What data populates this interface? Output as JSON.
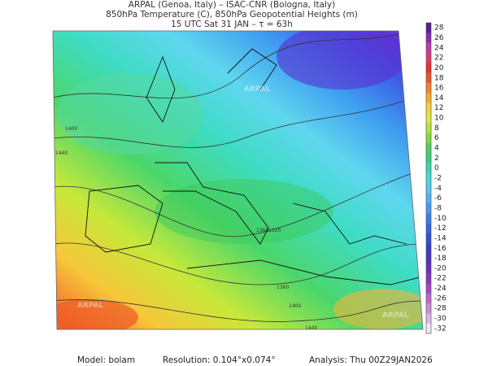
{
  "header": {
    "line1": "ARPAL (Genoa, Italy)  –  ISAC-CNR (Bologna, Italy)",
    "line2": "850hPa Temperature (C), 850hPa Geopotential Heights (m)",
    "line3": "15 UTC Sat 31 JAN  –  τ = 63h"
  },
  "colorbar": {
    "ticks": [
      28,
      26,
      24,
      22,
      20,
      18,
      16,
      14,
      12,
      10,
      8,
      6,
      4,
      2,
      0,
      -2,
      -4,
      -6,
      -8,
      -10,
      -12,
      -14,
      -16,
      -18,
      -20,
      -22,
      -24,
      -26,
      -28,
      -30,
      -32
    ]
  },
  "map": {
    "watermark": "ARPAL",
    "contour_labels": [
      1440,
      1400,
      1360,
      1320,
      1360,
      1400,
      1440
    ]
  },
  "footer": {
    "model": "Model: bolam",
    "resolution": "Resolution: 0.104°x0.074°",
    "analysis": "Analysis: Thu 00Z29JAN2026"
  }
}
